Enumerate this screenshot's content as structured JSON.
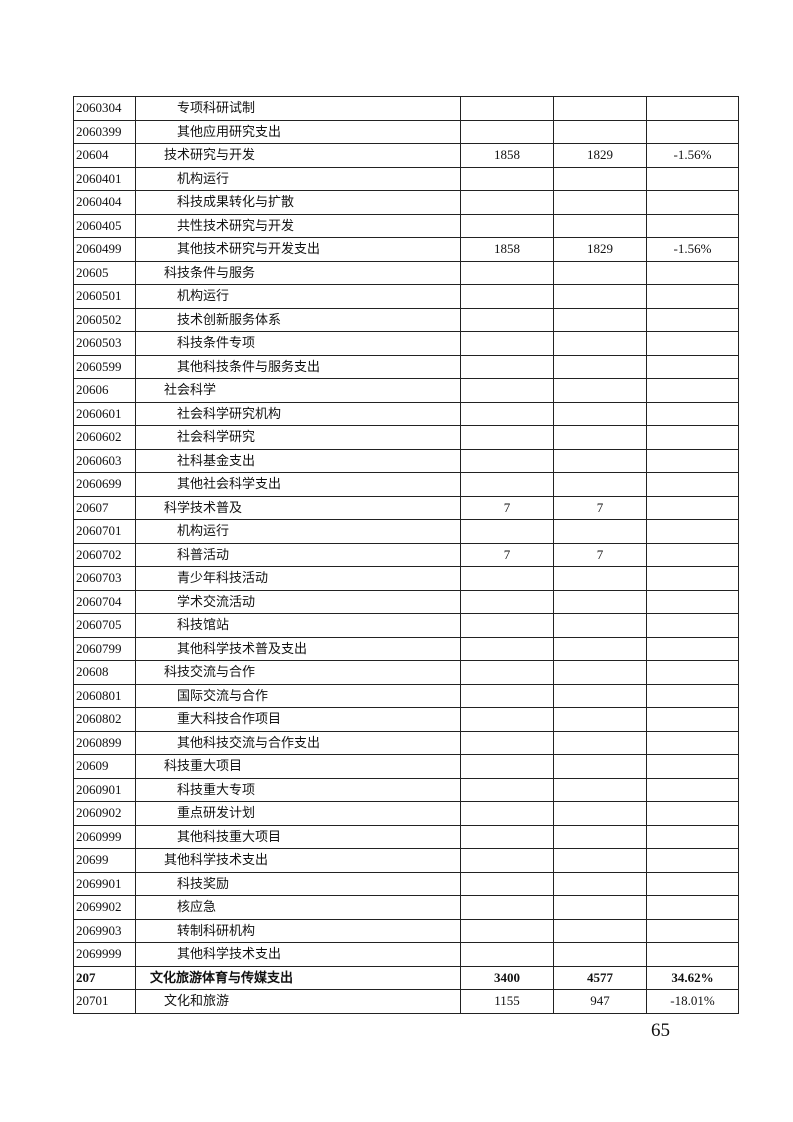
{
  "table": {
    "rows": [
      {
        "code": "2060304",
        "name": "专项科研试制",
        "v1": "",
        "v2": "",
        "pct": "",
        "level": 3
      },
      {
        "code": "2060399",
        "name": "其他应用研究支出",
        "v1": "",
        "v2": "",
        "pct": "",
        "level": 3
      },
      {
        "code": "20604",
        "name": "技术研究与开发",
        "v1": "1858",
        "v2": "1829",
        "pct": "-1.56%",
        "level": 2
      },
      {
        "code": "2060401",
        "name": "机构运行",
        "v1": "",
        "v2": "",
        "pct": "",
        "level": 3
      },
      {
        "code": "2060404",
        "name": "科技成果转化与扩散",
        "v1": "",
        "v2": "",
        "pct": "",
        "level": 3
      },
      {
        "code": "2060405",
        "name": "共性技术研究与开发",
        "v1": "",
        "v2": "",
        "pct": "",
        "level": 3
      },
      {
        "code": "2060499",
        "name": "其他技术研究与开发支出",
        "v1": "1858",
        "v2": "1829",
        "pct": "-1.56%",
        "level": 3
      },
      {
        "code": "20605",
        "name": "科技条件与服务",
        "v1": "",
        "v2": "",
        "pct": "",
        "level": 2
      },
      {
        "code": "2060501",
        "name": "机构运行",
        "v1": "",
        "v2": "",
        "pct": "",
        "level": 3
      },
      {
        "code": "2060502",
        "name": "技术创新服务体系",
        "v1": "",
        "v2": "",
        "pct": "",
        "level": 3
      },
      {
        "code": "2060503",
        "name": "科技条件专项",
        "v1": "",
        "v2": "",
        "pct": "",
        "level": 3
      },
      {
        "code": "2060599",
        "name": "其他科技条件与服务支出",
        "v1": "",
        "v2": "",
        "pct": "",
        "level": 3
      },
      {
        "code": "20606",
        "name": "社会科学",
        "v1": "",
        "v2": "",
        "pct": "",
        "level": 2
      },
      {
        "code": "2060601",
        "name": "社会科学研究机构",
        "v1": "",
        "v2": "",
        "pct": "",
        "level": 3
      },
      {
        "code": "2060602",
        "name": "社会科学研究",
        "v1": "",
        "v2": "",
        "pct": "",
        "level": 3
      },
      {
        "code": "2060603",
        "name": "社科基金支出",
        "v1": "",
        "v2": "",
        "pct": "",
        "level": 3
      },
      {
        "code": "2060699",
        "name": "其他社会科学支出",
        "v1": "",
        "v2": "",
        "pct": "",
        "level": 3
      },
      {
        "code": "20607",
        "name": "科学技术普及",
        "v1": "7",
        "v2": "7",
        "pct": "",
        "level": 2
      },
      {
        "code": "2060701",
        "name": "机构运行",
        "v1": "",
        "v2": "",
        "pct": "",
        "level": 3
      },
      {
        "code": "2060702",
        "name": "科普活动",
        "v1": "7",
        "v2": "7",
        "pct": "",
        "level": 3
      },
      {
        "code": "2060703",
        "name": "青少年科技活动",
        "v1": "",
        "v2": "",
        "pct": "",
        "level": 3
      },
      {
        "code": "2060704",
        "name": "学术交流活动",
        "v1": "",
        "v2": "",
        "pct": "",
        "level": 3
      },
      {
        "code": "2060705",
        "name": "科技馆站",
        "v1": "",
        "v2": "",
        "pct": "",
        "level": 3
      },
      {
        "code": "2060799",
        "name": "其他科学技术普及支出",
        "v1": "",
        "v2": "",
        "pct": "",
        "level": 3
      },
      {
        "code": "20608",
        "name": "科技交流与合作",
        "v1": "",
        "v2": "",
        "pct": "",
        "level": 2
      },
      {
        "code": "2060801",
        "name": "国际交流与合作",
        "v1": "",
        "v2": "",
        "pct": "",
        "level": 3
      },
      {
        "code": "2060802",
        "name": "重大科技合作项目",
        "v1": "",
        "v2": "",
        "pct": "",
        "level": 3
      },
      {
        "code": "2060899",
        "name": "其他科技交流与合作支出",
        "v1": "",
        "v2": "",
        "pct": "",
        "level": 3
      },
      {
        "code": "20609",
        "name": "科技重大项目",
        "v1": "",
        "v2": "",
        "pct": "",
        "level": 2
      },
      {
        "code": "2060901",
        "name": "科技重大专项",
        "v1": "",
        "v2": "",
        "pct": "",
        "level": 3
      },
      {
        "code": "2060902",
        "name": "重点研发计划",
        "v1": "",
        "v2": "",
        "pct": "",
        "level": 3
      },
      {
        "code": "2060999",
        "name": "其他科技重大项目",
        "v1": "",
        "v2": "",
        "pct": "",
        "level": 3
      },
      {
        "code": "20699",
        "name": "其他科学技术支出",
        "v1": "",
        "v2": "",
        "pct": "",
        "level": 2
      },
      {
        "code": "2069901",
        "name": "科技奖励",
        "v1": "",
        "v2": "",
        "pct": "",
        "level": 3
      },
      {
        "code": "2069902",
        "name": "核应急",
        "v1": "",
        "v2": "",
        "pct": "",
        "level": 3
      },
      {
        "code": "2069903",
        "name": "转制科研机构",
        "v1": "",
        "v2": "",
        "pct": "",
        "level": 3
      },
      {
        "code": "2069999",
        "name": "其他科学技术支出",
        "v1": "",
        "v2": "",
        "pct": "",
        "level": 3
      },
      {
        "code": "207",
        "name": "文化旅游体育与传媒支出",
        "v1": "3400",
        "v2": "4577",
        "pct": "34.62%",
        "level": 1
      },
      {
        "code": "20701",
        "name": "文化和旅游",
        "v1": "1155",
        "v2": "947",
        "pct": "-18.01%",
        "level": 2
      }
    ]
  },
  "page_number": "65"
}
